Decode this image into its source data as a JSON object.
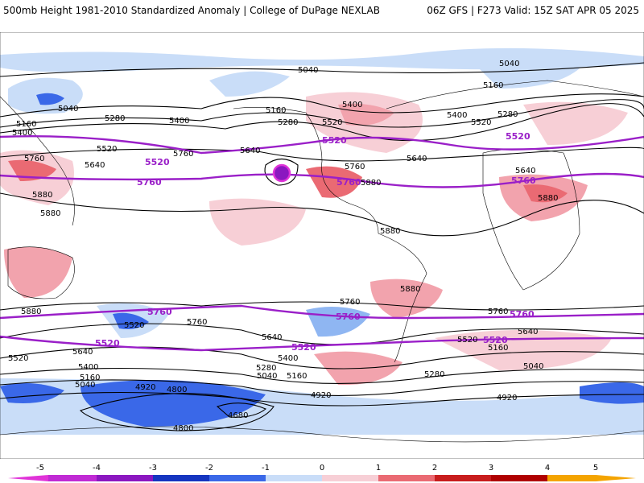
{
  "header": {
    "title": "500mb Height 1981-2010 Standardized Anomaly | College of DuPage NEXLAB",
    "run": "06Z GFS | F273 Valid: 15Z SAT APR 05 2025"
  },
  "colors": {
    "neg5": "#e033d8",
    "neg4": "#8b17c0",
    "neg3": "#1535c0",
    "neg2": "#3a68e8",
    "neg15": "#8fb6f2",
    "neg1": "#c9ddf8",
    "pos1": "#f7cfd6",
    "pos15": "#f2a3ad",
    "pos2": "#ea6a73",
    "pos3": "#c81d1d",
    "pos4": "#b00000",
    "pos5": "#f4a400",
    "contour": "#000000",
    "highlight_contour": "#9a1fc8",
    "land_outline": "#000000"
  },
  "colorbar": {
    "ticks": [
      "-5",
      "-4",
      "-3",
      "-2",
      "-1",
      "0",
      "1",
      "2",
      "3",
      "4",
      "5"
    ]
  },
  "contour_labels": {
    "n_5040_a": "5040",
    "n_5040_b": "5040",
    "n_5040_c": "5040",
    "n_5160_a": "5160",
    "n_5160_b": "5160",
    "n_5160_c": "5160",
    "n_5280_a": "5280",
    "n_5280_b": "5280",
    "n_5280_c": "5280",
    "n_5400_a": "5400",
    "n_5400_b": "5400",
    "n_5400_c": "5400",
    "n_5400_d": "5400",
    "n_5520_a": "5520",
    "n_5520_b": "5520",
    "n_5520_c": "5520",
    "n_5640_a": "5640",
    "n_5640_b": "5640",
    "n_5640_c": "5640",
    "n_5640_d": "5640",
    "n_5760_a": "5760",
    "n_5760_b": "5760",
    "n_5760_c": "5760",
    "n_5880_a": "5880",
    "n_5880_b": "5880",
    "n_5880_c": "5880",
    "n_5880_d": "5880",
    "n_5880_e": "5880",
    "np_5520_a": "5520",
    "np_5520_b": "5520",
    "np_5520_c": "5520",
    "np_5760_a": "5760",
    "np_5760_b": "5760",
    "np_5760_c": "5760",
    "s_5880_a": "5880",
    "s_5880_b": "5880",
    "s_5760_a": "5760",
    "s_5760_b": "5760",
    "s_5760_c": "5760",
    "s_5640_a": "5640",
    "s_5640_b": "5640",
    "s_5640_c": "5640",
    "s_5520_a": "5520",
    "s_5520_b": "5520",
    "s_5520_c": "5520",
    "s_5400_a": "5400",
    "s_5400_b": "5400",
    "s_5280_a": "5280",
    "s_5280_b": "5280",
    "s_5160_a": "5160",
    "s_5160_b": "5160",
    "s_5160_c": "5160",
    "s_5040_a": "5040",
    "s_5040_b": "5040",
    "s_5040_c": "5040",
    "s_4920_a": "4920",
    "s_4920_b": "4920",
    "s_4920_c": "4920",
    "s_4800_a": "4800",
    "s_4800_b": "4800",
    "s_4680_a": "4680",
    "sp_5760_a": "5760",
    "sp_5760_b": "5760",
    "sp_5760_c": "5760",
    "sp_5520_a": "5520",
    "sp_5520_b": "5520",
    "sp_5520_c": "5520"
  }
}
